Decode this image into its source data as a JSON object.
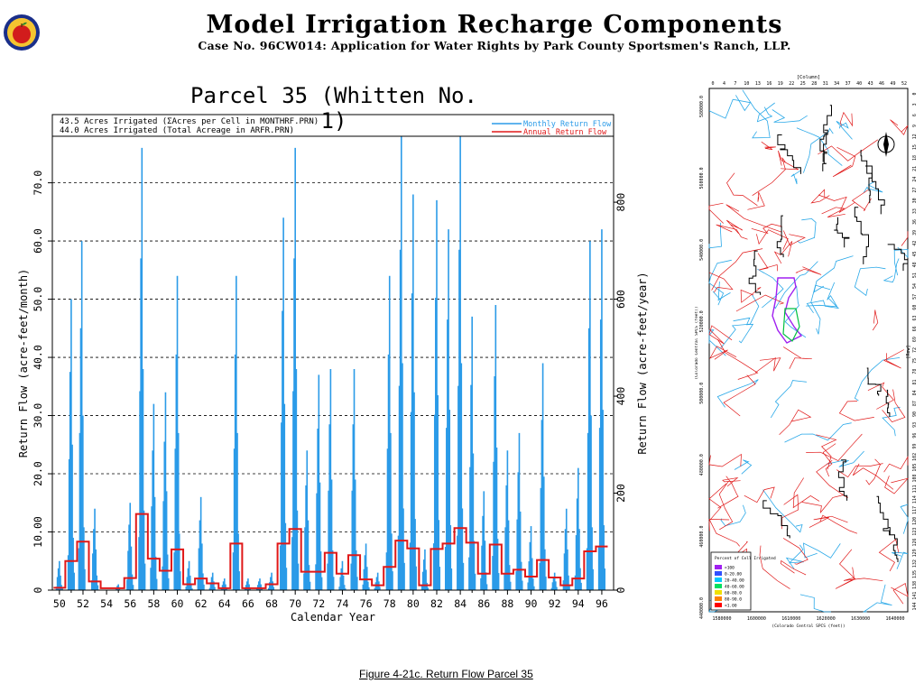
{
  "header": {
    "title": "Model Irrigation Recharge Components",
    "subtitle": "Case No. 96CW014: Application for Water Rights by Park County Sportsmen's Ranch, LLP."
  },
  "caption": "Figure 4-21c.  Return Flow Parcel 35",
  "chart_data": {
    "type": "bar",
    "title": "Parcel 35 (Whitten No. 1)",
    "notes": [
      "43.5 Acres Irrigated (ΣAcres per Cell in MONTHRF.PRN)",
      "44.0 Acres Irrigated (Total Acreage in ARFR.PRN)"
    ],
    "legend": {
      "placement": "top-right",
      "entries": [
        {
          "label": "Monthly Return Flow",
          "color": "#2b9be8"
        },
        {
          "label": "Annual Return Flow",
          "color": "#e01818"
        }
      ]
    },
    "xlabel": "Calendar Year",
    "ylabel_left": "Return Flow  (acre-feet/month)",
    "ylabel_right": "Return Flow  (acre-feet/year)",
    "xlim": [
      1949.4,
      1997.0
    ],
    "ylim_left": [
      0,
      78
    ],
    "ylim_right": [
      0,
      936
    ],
    "x_ticks": [
      1950,
      1952,
      1954,
      1956,
      1958,
      1960,
      1962,
      1964,
      1966,
      1968,
      1970,
      1972,
      1974,
      1976,
      1978,
      1980,
      1982,
      1984,
      1986,
      1988,
      1990,
      1992,
      1994,
      1996
    ],
    "x_tick_labels": [
      "50",
      "52",
      "54",
      "56",
      "58",
      "60",
      "62",
      "64",
      "66",
      "68",
      "70",
      "72",
      "74",
      "76",
      "78",
      "80",
      "82",
      "84",
      "86",
      "88",
      "90",
      "92",
      "94",
      "96"
    ],
    "y_ticks_left": [
      0,
      10,
      20,
      30,
      40,
      50,
      60,
      70
    ],
    "y_tick_labels_left": [
      "0",
      "10.00",
      "20.0",
      "30.0",
      "40.0",
      "50.0",
      "60.0",
      "70.0"
    ],
    "y_ticks_right": [
      0,
      200,
      400,
      600,
      800
    ],
    "y_tick_labels_right": [
      "0",
      "200",
      "400",
      "600",
      "800"
    ],
    "grid": "dashed horizontal at left ticks",
    "monthly_peaks": [
      {
        "x": 1950.0,
        "y": 5
      },
      {
        "x": 1951.0,
        "y": 50
      },
      {
        "x": 1951.9,
        "y": 60
      },
      {
        "x": 1953.0,
        "y": 14
      },
      {
        "x": 1955.0,
        "y": 1
      },
      {
        "x": 1956.0,
        "y": 15
      },
      {
        "x": 1957.0,
        "y": 76
      },
      {
        "x": 1958.0,
        "y": 32
      },
      {
        "x": 1959.0,
        "y": 34
      },
      {
        "x": 1960.0,
        "y": 54
      },
      {
        "x": 1961.0,
        "y": 5
      },
      {
        "x": 1962.0,
        "y": 16
      },
      {
        "x": 1963.0,
        "y": 3
      },
      {
        "x": 1964.0,
        "y": 2
      },
      {
        "x": 1965.0,
        "y": 54
      },
      {
        "x": 1966.0,
        "y": 2
      },
      {
        "x": 1967.0,
        "y": 2
      },
      {
        "x": 1968.0,
        "y": 3
      },
      {
        "x": 1969.0,
        "y": 64
      },
      {
        "x": 1970.0,
        "y": 76
      },
      {
        "x": 1971.0,
        "y": 24
      },
      {
        "x": 1972.0,
        "y": 37
      },
      {
        "x": 1973.0,
        "y": 38
      },
      {
        "x": 1974.0,
        "y": 5
      },
      {
        "x": 1975.0,
        "y": 38
      },
      {
        "x": 1976.0,
        "y": 8
      },
      {
        "x": 1977.0,
        "y": 3
      },
      {
        "x": 1978.0,
        "y": 54
      },
      {
        "x": 1979.0,
        "y": 78
      },
      {
        "x": 1980.0,
        "y": 68
      },
      {
        "x": 1981.0,
        "y": 7
      },
      {
        "x": 1982.0,
        "y": 67
      },
      {
        "x": 1983.0,
        "y": 62
      },
      {
        "x": 1984.0,
        "y": 78
      },
      {
        "x": 1985.0,
        "y": 47
      },
      {
        "x": 1986.0,
        "y": 17
      },
      {
        "x": 1987.0,
        "y": 49
      },
      {
        "x": 1988.0,
        "y": 24
      },
      {
        "x": 1989.0,
        "y": 27
      },
      {
        "x": 1990.0,
        "y": 11
      },
      {
        "x": 1991.0,
        "y": 39
      },
      {
        "x": 1992.0,
        "y": 3
      },
      {
        "x": 1993.0,
        "y": 14
      },
      {
        "x": 1994.0,
        "y": 21
      },
      {
        "x": 1995.0,
        "y": 60
      },
      {
        "x": 1996.0,
        "y": 62
      }
    ],
    "annual_return_flow": [
      {
        "year": 1949.5,
        "value": 5
      },
      {
        "year": 1950.5,
        "value": 60
      },
      {
        "year": 1951.5,
        "value": 100
      },
      {
        "year": 1952.5,
        "value": 18
      },
      {
        "year": 1953.5,
        "value": 4
      },
      {
        "year": 1954.5,
        "value": 4
      },
      {
        "year": 1955.5,
        "value": 25
      },
      {
        "year": 1956.5,
        "value": 157
      },
      {
        "year": 1957.5,
        "value": 65
      },
      {
        "year": 1958.5,
        "value": 40
      },
      {
        "year": 1959.5,
        "value": 84
      },
      {
        "year": 1960.5,
        "value": 12
      },
      {
        "year": 1961.5,
        "value": 24
      },
      {
        "year": 1962.5,
        "value": 14
      },
      {
        "year": 1963.5,
        "value": 4
      },
      {
        "year": 1964.5,
        "value": 96
      },
      {
        "year": 1965.5,
        "value": 4
      },
      {
        "year": 1966.5,
        "value": 4
      },
      {
        "year": 1967.5,
        "value": 12
      },
      {
        "year": 1968.5,
        "value": 96
      },
      {
        "year": 1969.5,
        "value": 126
      },
      {
        "year": 1970.5,
        "value": 38
      },
      {
        "year": 1971.5,
        "value": 38
      },
      {
        "year": 1972.5,
        "value": 77
      },
      {
        "year": 1973.5,
        "value": 34
      },
      {
        "year": 1974.5,
        "value": 72
      },
      {
        "year": 1975.5,
        "value": 22
      },
      {
        "year": 1976.5,
        "value": 10
      },
      {
        "year": 1977.5,
        "value": 48
      },
      {
        "year": 1978.5,
        "value": 102
      },
      {
        "year": 1979.5,
        "value": 86
      },
      {
        "year": 1980.5,
        "value": 10
      },
      {
        "year": 1981.5,
        "value": 85
      },
      {
        "year": 1982.5,
        "value": 96
      },
      {
        "year": 1983.5,
        "value": 128
      },
      {
        "year": 1984.5,
        "value": 98
      },
      {
        "year": 1985.5,
        "value": 34
      },
      {
        "year": 1986.5,
        "value": 94
      },
      {
        "year": 1987.5,
        "value": 34
      },
      {
        "year": 1988.5,
        "value": 42
      },
      {
        "year": 1989.5,
        "value": 28
      },
      {
        "year": 1990.5,
        "value": 62
      },
      {
        "year": 1991.5,
        "value": 26
      },
      {
        "year": 1992.5,
        "value": 10
      },
      {
        "year": 1993.5,
        "value": 24
      },
      {
        "year": 1994.5,
        "value": 80
      },
      {
        "year": 1995.5,
        "value": 90
      }
    ]
  },
  "map": {
    "column_label": "[Column]",
    "row_label": "[Row]",
    "axis_label_x": "(Colorado Central SPCS (feet))",
    "axis_label_y": "(Colorado Central SPCS (feet))",
    "col_ticks": [
      "0",
      "4",
      "7",
      "10",
      "13",
      "16",
      "19",
      "22",
      "25",
      "28",
      "31",
      "34",
      "37",
      "40",
      "43",
      "46",
      "49",
      "52"
    ],
    "row_ticks": [
      "0",
      "3",
      "6",
      "9",
      "12",
      "15",
      "18",
      "21",
      "24",
      "27",
      "30",
      "33",
      "36",
      "39",
      "42",
      "45",
      "48",
      "51",
      "54",
      "57",
      "60",
      "63",
      "66",
      "69",
      "72",
      "75",
      "78",
      "81",
      "84",
      "87",
      "90",
      "93",
      "96",
      "99",
      "102",
      "105",
      "108",
      "111",
      "114",
      "117",
      "120",
      "123",
      "126",
      "129",
      "132",
      "135",
      "138",
      "141",
      "144"
    ],
    "easting_ticks": [
      "1580000",
      "1600000",
      "1610000",
      "1620000",
      "1630000",
      "1640000"
    ],
    "northing_ticks": [
      "580000.0",
      "560000.0",
      "540000.0",
      "520000.0",
      "500000.0",
      "480000.0",
      "460000.0",
      "440000.0"
    ],
    "legend_title": "Percent of Cell Irrigated",
    "legend": [
      {
        "label": ">100",
        "color": "#a020f0"
      },
      {
        "label": "0-20.00",
        "color": "#3050ff"
      },
      {
        "label": "20-40.00",
        "color": "#00c8ff"
      },
      {
        "label": "40-60.00",
        "color": "#00e060"
      },
      {
        "label": "60-80.0",
        "color": "#f0e000"
      },
      {
        "label": "80-90.0",
        "color": "#ff8000"
      },
      {
        "label": "<1.00",
        "color": "#ff0000"
      }
    ]
  }
}
